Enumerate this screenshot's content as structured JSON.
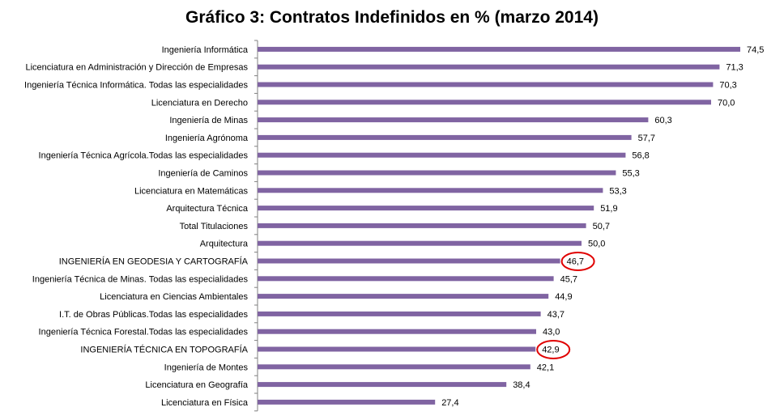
{
  "chart_data": {
    "type": "bar",
    "orientation": "horizontal",
    "title": "Gráfico 3: Contratos Indefinidos en % (marzo 2014)",
    "xlabel": "",
    "ylabel": "",
    "xlim": [
      0,
      80
    ],
    "grid": false,
    "legend": "none",
    "bar_color": "#8064a2",
    "highlight_color": "#e00000",
    "categories": [
      "Ingeniería Informática",
      "Licenciatura en Administración y Dirección de Empresas",
      "Ingeniería Técnica Informática. Todas las especialidades",
      "Licenciatura en Derecho",
      "Ingeniería de Minas",
      "Ingeniería Agrónoma",
      "Ingeniería Técnica Agrícola.Todas las especialidades",
      "Ingeniería de Caminos",
      "Licenciatura en Matemáticas",
      "Arquitectura Técnica",
      "Total Titulaciones",
      "Arquitectura",
      "INGENIERÍA EN GEODESIA Y CARTOGRAFÍA",
      "Ingeniería Técnica de Minas. Todas las especialidades",
      "Licenciatura en Ciencias Ambientales",
      "I.T. de Obras Públicas.Todas las especialidades",
      "Ingeniería Técnica Forestal.Todas las especialidades",
      "INGENIERÍA TÉCNICA EN TOPOGRAFÍA",
      "Ingeniería de Montes",
      "Licenciatura en Geografía",
      "Licenciatura en Física"
    ],
    "values": [
      74.5,
      71.3,
      70.3,
      70.0,
      60.3,
      57.7,
      56.8,
      55.3,
      53.3,
      51.9,
      50.7,
      50.0,
      46.7,
      45.7,
      44.9,
      43.7,
      43.0,
      42.9,
      42.1,
      38.4,
      27.4
    ],
    "value_labels": [
      "74,5",
      "71,3",
      "70,3",
      "70,0",
      "60,3",
      "57,7",
      "56,8",
      "55,3",
      "53,3",
      "51,9",
      "50,7",
      "50,0",
      "46,7",
      "45,7",
      "44,9",
      "43,7",
      "43,0",
      "42,9",
      "42,1",
      "38,4",
      "27,4"
    ],
    "annotations": [
      {
        "type": "circle",
        "category": "INGENIERÍA EN GEODESIA Y CARTOGRAFÍA"
      },
      {
        "type": "circle",
        "category": "INGENIERÍA TÉCNICA EN TOPOGRAFÍA"
      }
    ]
  }
}
